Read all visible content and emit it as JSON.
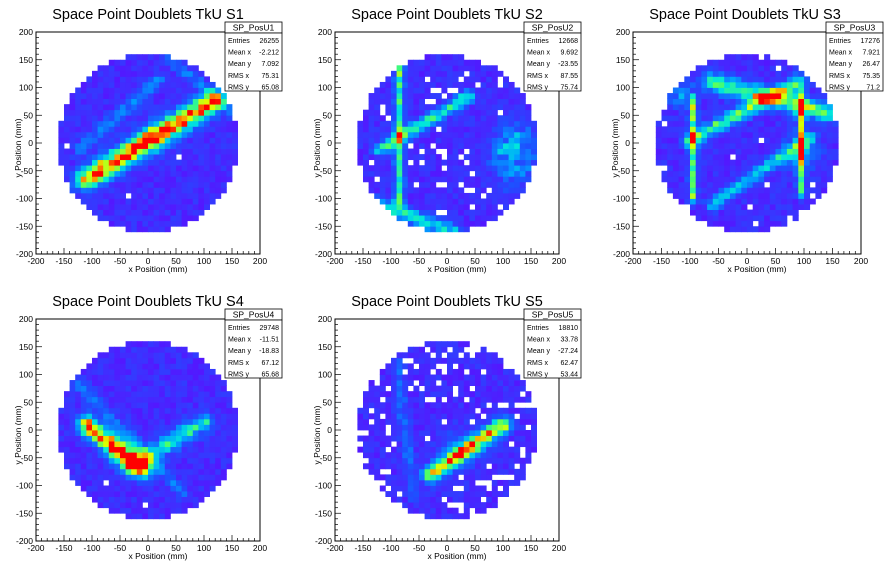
{
  "chart_data": [
    {
      "type": "heatmap",
      "title": "Space Point Doublets TkU S1",
      "xlabel": "x Position (mm)",
      "ylabel": "y Position (mm)",
      "xlim": [
        -200,
        200
      ],
      "ylim": [
        -200,
        200
      ],
      "xticks": [
        "-200",
        "-150",
        "-100",
        "-50",
        "0",
        "50",
        "100",
        "150",
        "200"
      ],
      "yticks": [
        "-200",
        "-150",
        "-100",
        "-50",
        "0",
        "50",
        "100",
        "150",
        "200"
      ],
      "stats": {
        "name": "SP_PosU1",
        "rows": [
          {
            "label": "Entries",
            "value": "26255"
          },
          {
            "label": "Mean x",
            "value": "-2.212"
          },
          {
            "label": "Mean y",
            "value": "7.092"
          },
          {
            "label": "RMS x",
            "value": "75.31"
          },
          {
            "label": "RMS y",
            "value": "65.08"
          }
        ]
      },
      "features": [
        {
          "kind": "band",
          "x1": -110,
          "y1": -65,
          "x2": 115,
          "y2": 75,
          "w": 14,
          "peak": 0.85,
          "hot_x": 5,
          "hot_y": 10,
          "hot_peak": 1.0
        },
        {
          "kind": "band",
          "x1": -120,
          "y1": -10,
          "x2": 20,
          "y2": 115,
          "w": 9,
          "peak": 0.22
        },
        {
          "kind": "band",
          "x1": 40,
          "y1": 150,
          "x2": 150,
          "y2": 60,
          "w": 8,
          "peak": 0.2
        }
      ]
    },
    {
      "type": "heatmap",
      "title": "Space Point Doublets TkU S2",
      "xlabel": "x Position (mm)",
      "ylabel": "y Position (mm)",
      "xlim": [
        -200,
        200
      ],
      "ylim": [
        -200,
        200
      ],
      "xticks": [
        "-200",
        "-150",
        "-100",
        "-50",
        "0",
        "50",
        "100",
        "150",
        "200"
      ],
      "yticks": [
        "-200",
        "-150",
        "-100",
        "-50",
        "0",
        "50",
        "100",
        "150",
        "200"
      ],
      "stats": {
        "name": "SP_PosU2",
        "rows": [
          {
            "label": "Entries",
            "value": "12668"
          },
          {
            "label": "Mean x",
            "value": "9.692"
          },
          {
            "label": "Mean y",
            "value": "-23.55"
          },
          {
            "label": "RMS x",
            "value": "87.55"
          },
          {
            "label": "RMS y",
            "value": "75.74"
          }
        ]
      },
      "features": [
        {
          "kind": "band",
          "x1": -85,
          "y1": 150,
          "x2": -85,
          "y2": -110,
          "w": 6,
          "peak": 0.5
        },
        {
          "kind": "band",
          "x1": -120,
          "y1": -10,
          "x2": 40,
          "y2": 85,
          "w": 8,
          "peak": 0.5
        },
        {
          "kind": "band",
          "x1": -120,
          "y1": -110,
          "x2": 10,
          "y2": -160,
          "w": 9,
          "peak": 0.45
        },
        {
          "kind": "blob",
          "x": 120,
          "y": -20,
          "rx": 40,
          "ry": 55,
          "peak": 0.45
        }
      ]
    },
    {
      "type": "heatmap",
      "title": "Space Point Doublets TkU S3",
      "xlabel": "x Position (mm)",
      "ylabel": "y Position (mm)",
      "xlim": [
        -200,
        200
      ],
      "ylim": [
        -200,
        200
      ],
      "xticks": [
        "-200",
        "-150",
        "-100",
        "-50",
        "0",
        "50",
        "100",
        "150",
        "200"
      ],
      "yticks": [
        "-200",
        "-150",
        "-100",
        "-50",
        "0",
        "50",
        "100",
        "150",
        "200"
      ],
      "stats": {
        "name": "SP_PosU3",
        "rows": [
          {
            "label": "Entries",
            "value": "17276"
          },
          {
            "label": "Mean x",
            "value": "7.921"
          },
          {
            "label": "Mean y",
            "value": "26.47"
          },
          {
            "label": "RMS x",
            "value": "75.35"
          },
          {
            "label": "RMS y",
            "value": "71.2"
          }
        ]
      },
      "features": [
        {
          "kind": "band",
          "x1": -95,
          "y1": 80,
          "x2": -95,
          "y2": -100,
          "w": 5,
          "peak": 0.55
        },
        {
          "kind": "band",
          "x1": 95,
          "y1": 90,
          "x2": 95,
          "y2": -90,
          "w": 5,
          "peak": 0.55,
          "hot_x": 95,
          "hot_y": -20,
          "hot_peak": 0.8
        },
        {
          "kind": "band",
          "x1": -100,
          "y1": 5,
          "x2": 90,
          "y2": 110,
          "w": 9,
          "peak": 0.55
        },
        {
          "kind": "band",
          "x1": -60,
          "y1": 110,
          "x2": 140,
          "y2": 55,
          "w": 12,
          "peak": 0.55
        },
        {
          "kind": "band",
          "x1": -60,
          "y1": -110,
          "x2": 110,
          "y2": 10,
          "w": 8,
          "peak": 0.4
        },
        {
          "kind": "blob",
          "x": -120,
          "y": 90,
          "rx": 35,
          "ry": 25,
          "peak": 0.3
        }
      ]
    },
    {
      "type": "heatmap",
      "title": "Space Point Doublets TkU S4",
      "xlabel": "x Position (mm)",
      "ylabel": "y Position (mm)",
      "xlim": [
        -200,
        200
      ],
      "ylim": [
        -200,
        200
      ],
      "xticks": [
        "-200",
        "-150",
        "-100",
        "-50",
        "0",
        "50",
        "100",
        "150",
        "200"
      ],
      "yticks": [
        "-200",
        "-150",
        "-100",
        "-50",
        "0",
        "50",
        "100",
        "150",
        "200"
      ],
      "stats": {
        "name": "SP_PosU4",
        "rows": [
          {
            "label": "Entries",
            "value": "29748"
          },
          {
            "label": "Mean x",
            "value": "-11.51"
          },
          {
            "label": "Mean y",
            "value": "-18.83"
          },
          {
            "label": "RMS x",
            "value": "67.12"
          },
          {
            "label": "RMS y",
            "value": "65.68"
          }
        ]
      },
      "features": [
        {
          "kind": "band",
          "x1": -110,
          "y1": 10,
          "x2": -10,
          "y2": -70,
          "w": 12,
          "peak": 0.8,
          "hot_x": -45,
          "hot_y": -40,
          "hot_peak": 1.0
        },
        {
          "kind": "band",
          "x1": -30,
          "y1": -65,
          "x2": 100,
          "y2": 15,
          "w": 11,
          "peak": 0.45
        },
        {
          "kind": "band",
          "x1": -130,
          "y1": 90,
          "x2": 60,
          "y2": -110,
          "w": 8,
          "peak": 0.2
        }
      ]
    },
    {
      "type": "heatmap",
      "title": "Space Point Doublets TkU S5",
      "xlabel": "x Position (mm)",
      "ylabel": "y Position (mm)",
      "xlim": [
        -200,
        200
      ],
      "ylim": [
        -200,
        200
      ],
      "xticks": [
        "-200",
        "-150",
        "-100",
        "-50",
        "0",
        "50",
        "100",
        "150",
        "200"
      ],
      "yticks": [
        "-200",
        "-150",
        "-100",
        "-50",
        "0",
        "50",
        "100",
        "150",
        "200"
      ],
      "stats": {
        "name": "SP_PosU5",
        "rows": [
          {
            "label": "Entries",
            "value": "18810"
          },
          {
            "label": "Mean x",
            "value": "33.78"
          },
          {
            "label": "Mean y",
            "value": "-27.24"
          },
          {
            "label": "RMS x",
            "value": "62.47"
          },
          {
            "label": "RMS y",
            "value": "53.44"
          }
        ]
      },
      "features": [
        {
          "kind": "band",
          "x1": -30,
          "y1": -80,
          "x2": 100,
          "y2": 10,
          "w": 10,
          "peak": 0.75,
          "hot_x": 25,
          "hot_y": -35,
          "hot_peak": 0.95
        },
        {
          "kind": "band",
          "x1": -90,
          "y1": 120,
          "x2": -60,
          "y2": -120,
          "w": 7,
          "peak": 0.18
        }
      ]
    }
  ]
}
